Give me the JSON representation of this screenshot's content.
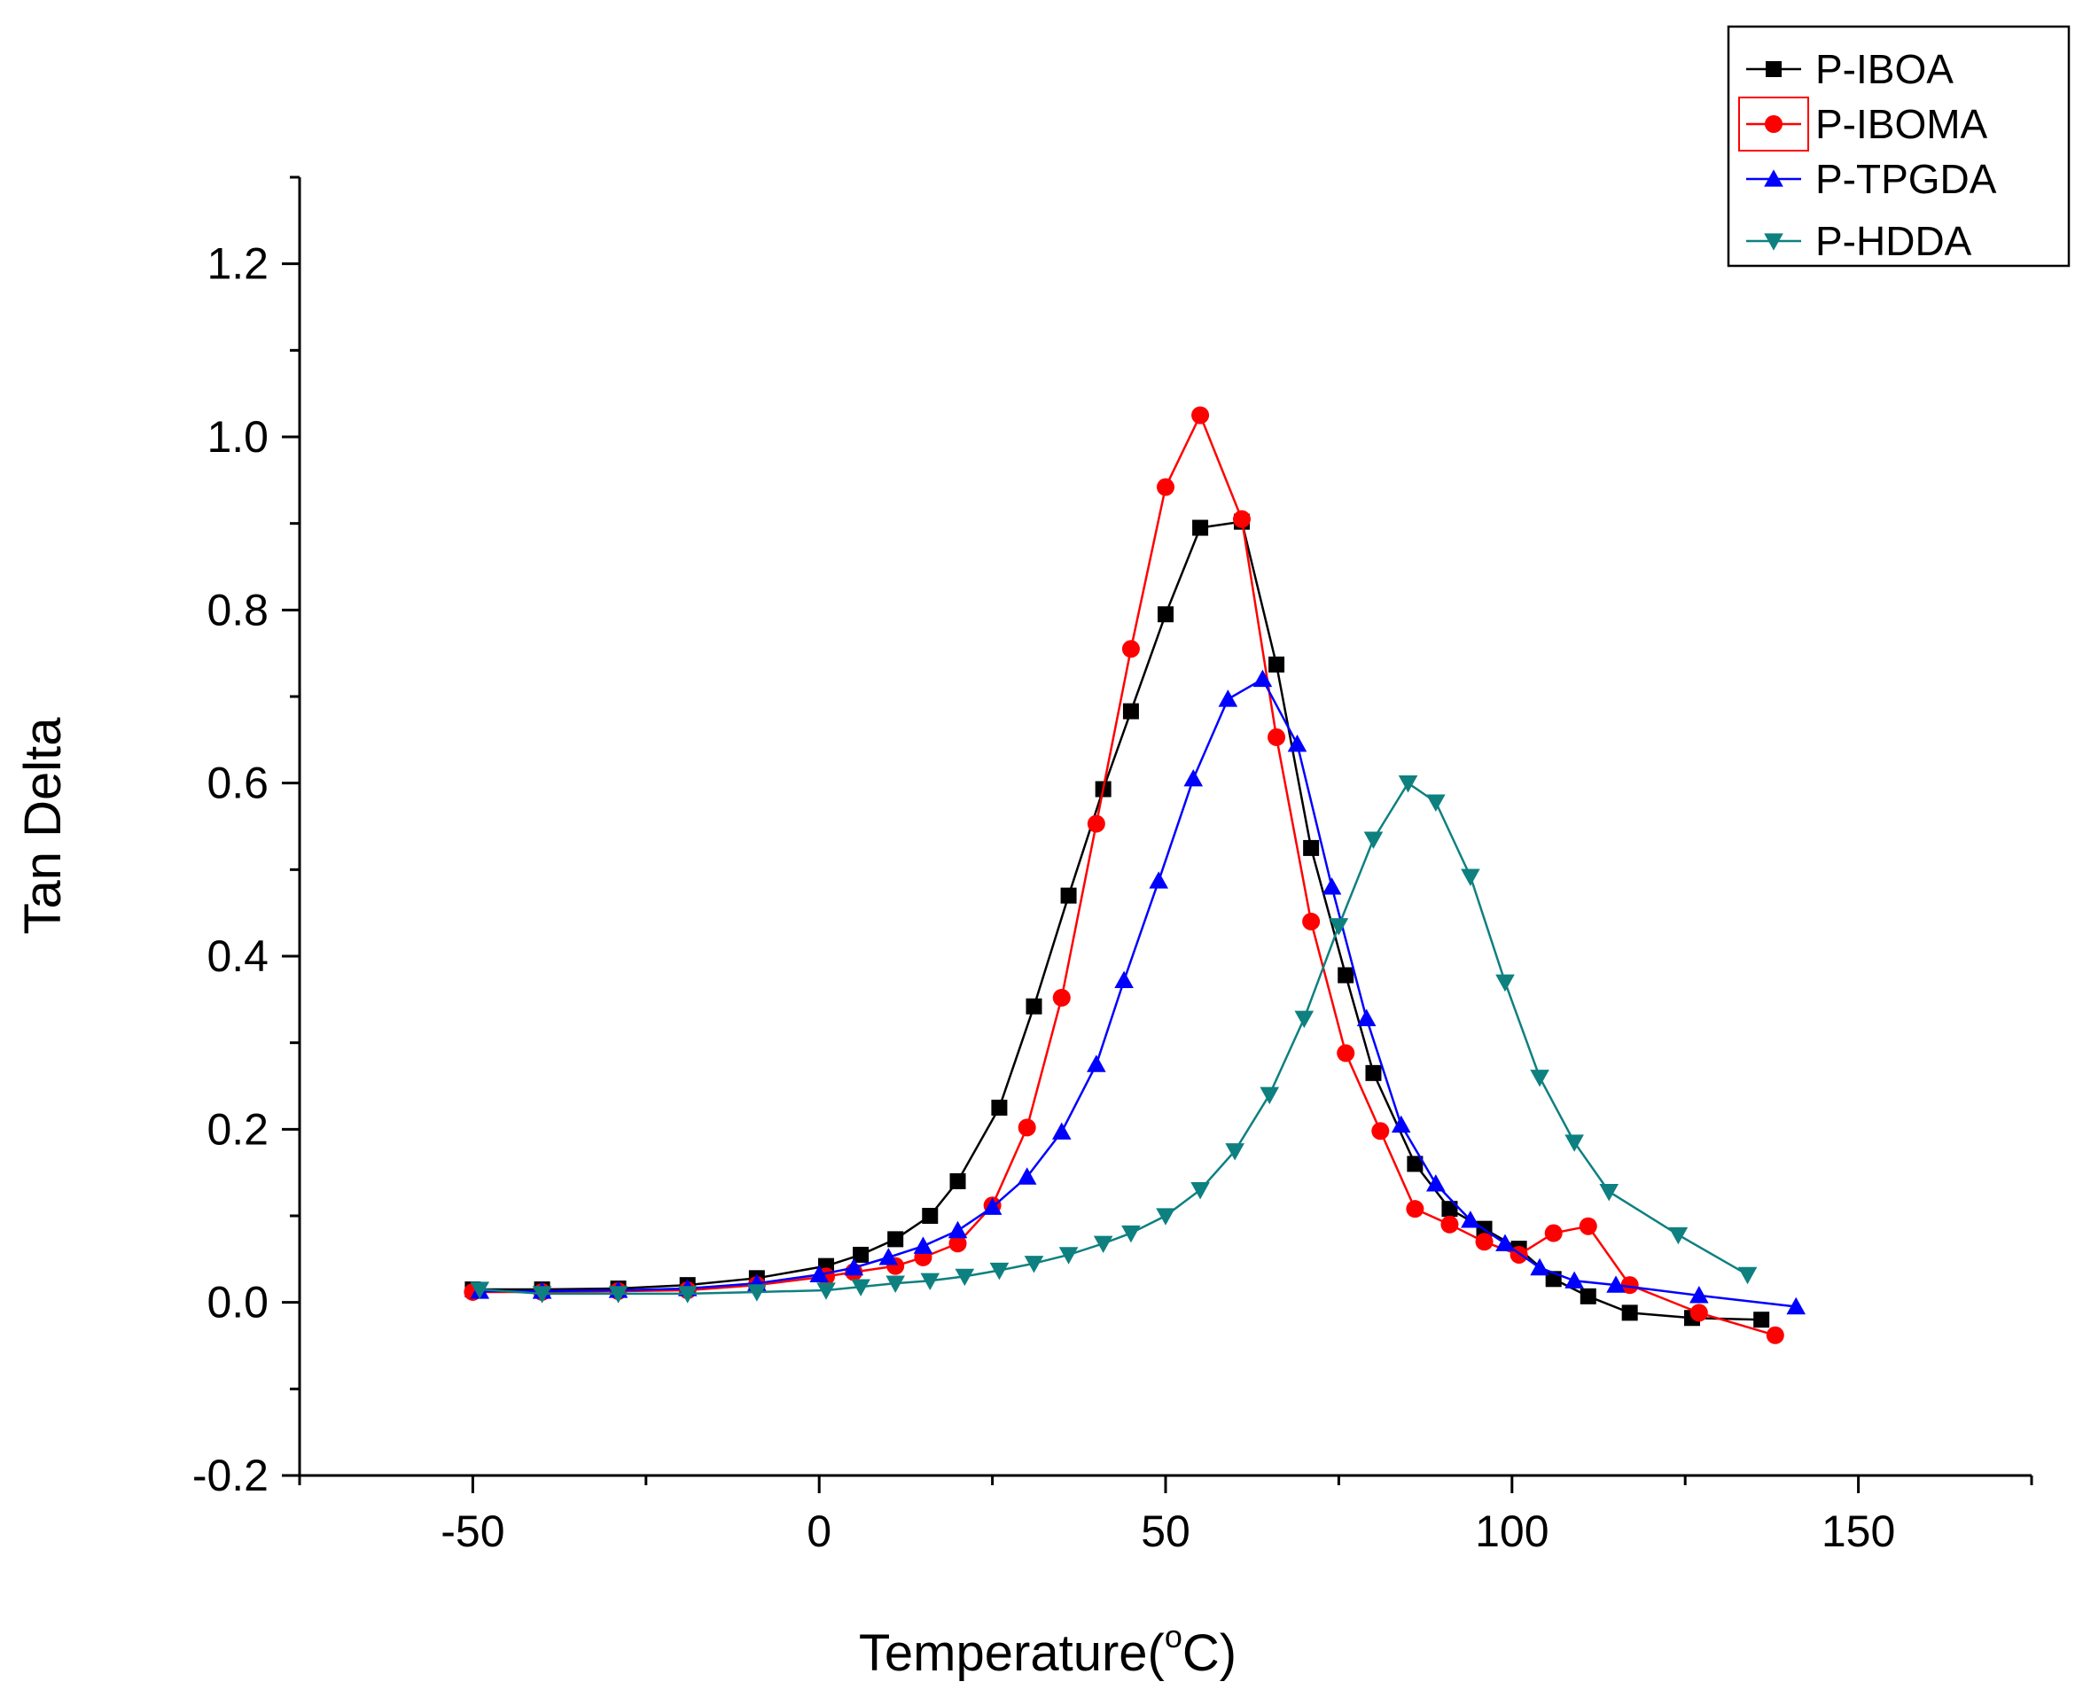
{
  "chart_data": {
    "type": "line",
    "title": "",
    "xlabel": "Temperature(",
    "xlabel_sup": "o",
    "xlabel_unit": "C)",
    "ylabel": "Tan Delta",
    "xlim": [
      -75,
      175
    ],
    "ylim": [
      -0.2,
      1.3
    ],
    "xticks": [
      -50,
      0,
      50,
      100,
      150
    ],
    "xtick_labels": [
      "-50",
      "0",
      "50",
      "100",
      "150"
    ],
    "yticks": [
      -0.2,
      0.0,
      0.2,
      0.4,
      0.6,
      0.8,
      1.0,
      1.2
    ],
    "ytick_labels": [
      "-0.2",
      "0.0",
      "0.2",
      "0.4",
      "0.6",
      "0.8",
      "1.0",
      "1.2"
    ],
    "grid": false,
    "legend_position": "top-right",
    "series": [
      {
        "name": "P-IBOA",
        "color": "#000000",
        "marker": "square",
        "x": [
          -50,
          -40,
          -29,
          -19,
          -9,
          1,
          6,
          11,
          16,
          20,
          26,
          31,
          36,
          41,
          45,
          50,
          55,
          61,
          66,
          71,
          76,
          80,
          86,
          91,
          96,
          101,
          106,
          111,
          117,
          126,
          136
        ],
        "y": [
          0.015,
          0.015,
          0.016,
          0.02,
          0.028,
          0.042,
          0.055,
          0.073,
          0.1,
          0.14,
          0.225,
          0.342,
          0.47,
          0.593,
          0.683,
          0.795,
          0.895,
          0.902,
          0.737,
          0.525,
          0.378,
          0.265,
          0.16,
          0.108,
          0.085,
          0.062,
          0.027,
          0.007,
          -0.012,
          -0.018,
          -0.02
        ]
      },
      {
        "name": "P-IBOMA",
        "color": "#ff0000",
        "marker": "circle",
        "x": [
          -50,
          -40,
          -29,
          -19,
          -9,
          1,
          5,
          11,
          15,
          20,
          25,
          30,
          35,
          40,
          45,
          50,
          55,
          61,
          66,
          71,
          76,
          81,
          86,
          91,
          96,
          101,
          106,
          111,
          117,
          127,
          138
        ],
        "y": [
          0.012,
          0.012,
          0.013,
          0.014,
          0.02,
          0.03,
          0.035,
          0.042,
          0.052,
          0.068,
          0.112,
          0.202,
          0.352,
          0.553,
          0.755,
          0.942,
          1.025,
          0.905,
          0.653,
          0.44,
          0.288,
          0.198,
          0.108,
          0.09,
          0.07,
          0.055,
          0.08,
          0.088,
          0.02,
          -0.012,
          -0.038
        ]
      },
      {
        "name": "P-TPGDA",
        "color": "#0000ff",
        "marker": "triangle-up",
        "x": [
          -49,
          -40,
          -29,
          -19,
          -9,
          0,
          5,
          10,
          15,
          20,
          25,
          30,
          35,
          40,
          44,
          49,
          54,
          59,
          64,
          69,
          74,
          79,
          84,
          89,
          94,
          99,
          104,
          109,
          115,
          127,
          141
        ],
        "y": [
          0.013,
          0.013,
          0.014,
          0.016,
          0.022,
          0.032,
          0.04,
          0.052,
          0.065,
          0.083,
          0.11,
          0.145,
          0.197,
          0.275,
          0.372,
          0.487,
          0.605,
          0.697,
          0.72,
          0.645,
          0.48,
          0.328,
          0.205,
          0.137,
          0.095,
          0.068,
          0.04,
          0.025,
          0.02,
          0.008,
          -0.005
        ]
      },
      {
        "name": "P-HDDA",
        "color": "#0e8080",
        "marker": "triangle-down",
        "x": [
          -49,
          -40,
          -29,
          -19,
          -9,
          1,
          6,
          11,
          16,
          21,
          26,
          31,
          36,
          41,
          45,
          50,
          55,
          60,
          65,
          70,
          75,
          80,
          85,
          89,
          94,
          99,
          104,
          109,
          114,
          124,
          134
        ],
        "y": [
          0.015,
          0.01,
          0.01,
          0.01,
          0.012,
          0.014,
          0.018,
          0.022,
          0.025,
          0.03,
          0.037,
          0.045,
          0.055,
          0.068,
          0.08,
          0.1,
          0.13,
          0.175,
          0.24,
          0.328,
          0.435,
          0.535,
          0.6,
          0.578,
          0.492,
          0.37,
          0.26,
          0.185,
          0.128,
          0.078,
          0.032
        ]
      }
    ]
  }
}
